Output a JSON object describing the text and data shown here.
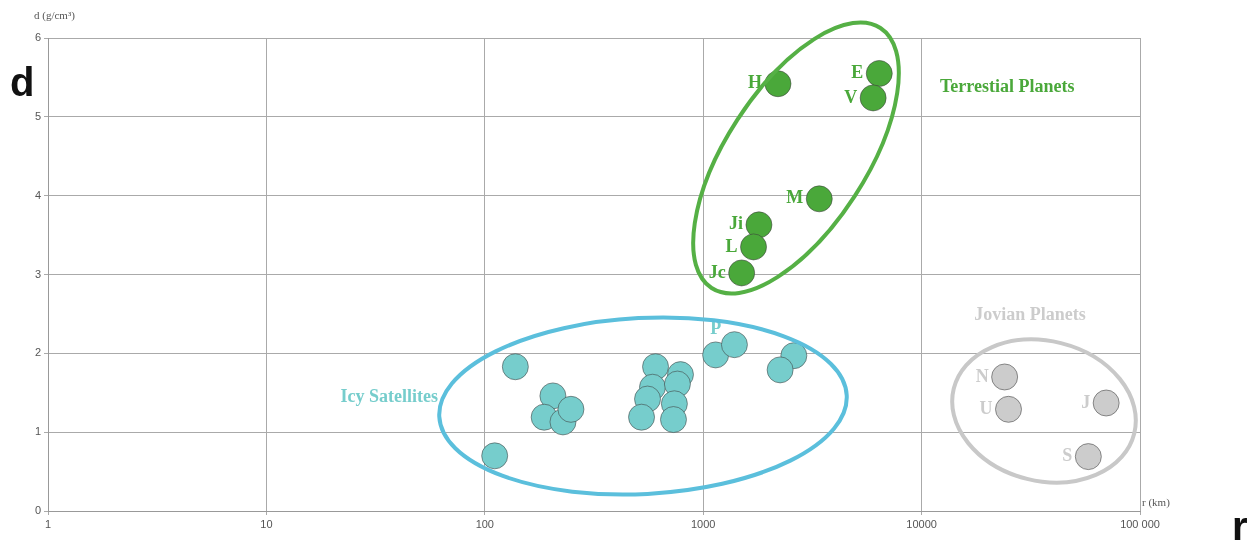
{
  "chart_data": {
    "type": "scatter",
    "log": "x",
    "xlabel": "r (km)",
    "ylabel": "d (g/cm³)",
    "xlim": [
      1,
      100000
    ],
    "xticks": [
      1,
      10,
      100,
      1000,
      10000,
      {
        "value": 100000,
        "label": "100 000"
      }
    ],
    "ylim": [
      0,
      6
    ],
    "yticks": [
      0,
      1,
      2,
      3,
      4,
      5,
      6
    ],
    "grid": true,
    "legend": false,
    "marker": "circle",
    "series": [
      {
        "name": "Terrestial Planets",
        "color": "#4aa83a",
        "x": [
          2200,
          6400,
          6000,
          3400,
          1800,
          1700,
          1500
        ],
        "values": [
          5.42,
          5.55,
          5.24,
          3.96,
          3.63,
          3.35,
          3.02
        ],
        "value_labels": [
          "H",
          "E",
          "V",
          "M",
          "Ji",
          "L",
          "Jc"
        ]
      },
      {
        "name": "Icy Satellites",
        "color": "#76cdcc",
        "x": [
          138,
          205,
          187,
          228,
          248,
          111,
          605,
          586,
          556,
          522,
          787,
          762,
          738,
          731,
          1140,
          1390,
          2600,
          2250
        ],
        "values": [
          1.83,
          1.46,
          1.19,
          1.13,
          1.29,
          0.7,
          1.83,
          1.57,
          1.42,
          1.19,
          1.73,
          1.61,
          1.36,
          1.16,
          1.98,
          2.11,
          1.97,
          1.79
        ],
        "value_labels": [
          null,
          null,
          null,
          null,
          null,
          null,
          null,
          null,
          null,
          null,
          null,
          null,
          null,
          null,
          "P",
          null,
          null,
          null
        ]
      },
      {
        "name": "Jovian Planets",
        "color": "#cccccc",
        "x": [
          24000,
          25000,
          70000,
          58000
        ],
        "values": [
          1.7,
          1.29,
          1.37,
          0.69
        ],
        "value_labels": [
          "N",
          "U",
          "J",
          "S"
        ]
      }
    ],
    "annotations": [
      "d",
      "r"
    ]
  }
}
